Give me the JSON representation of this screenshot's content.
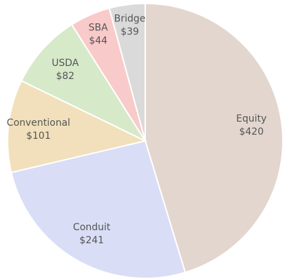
{
  "chart_data": {
    "type": "pie",
    "categories": [
      "Equity",
      "Conduit",
      "Conventional",
      "USDA",
      "SBA",
      "Bridge"
    ],
    "values": [
      420,
      241,
      101,
      82,
      44,
      39
    ],
    "value_labels": [
      "$420",
      "$241",
      "$101",
      "$82",
      "$44",
      "$39"
    ],
    "colors": [
      "#e3d6ce",
      "#d9ddf6",
      "#f1e0bb",
      "#d6e9c9",
      "#f9caca",
      "#dadada"
    ]
  }
}
